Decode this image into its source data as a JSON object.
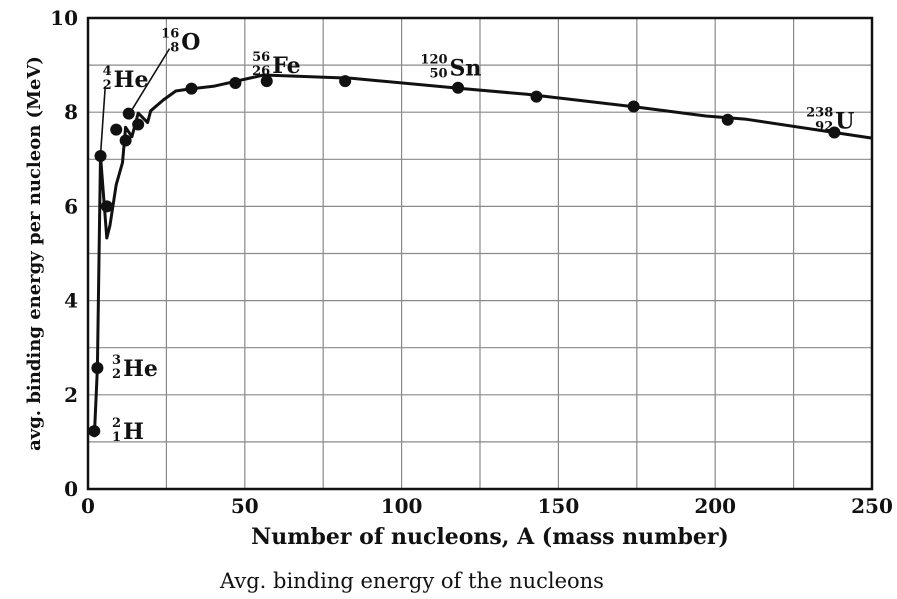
{
  "chart_data": {
    "type": "line",
    "title": "",
    "xlabel": "Number of nucleons, A (mass number)",
    "ylabel": "avg. binding energy per nucleon (MeV)",
    "xlim": [
      0,
      250
    ],
    "ylim": [
      0,
      10
    ],
    "x_ticks": [
      "0",
      "50",
      "100",
      "150",
      "200",
      "250"
    ],
    "y_ticks": [
      "0",
      "2",
      "4",
      "6",
      "8",
      "10"
    ],
    "grid": true,
    "series": [
      {
        "points": [
          {
            "x": 2,
            "y": 1.1
          },
          {
            "x": 3,
            "y": 2.57
          },
          {
            "x": 4,
            "y": 7.07
          },
          {
            "x": 6,
            "y": 5.33
          },
          {
            "x": 7,
            "y": 5.6
          },
          {
            "x": 9,
            "y": 6.46
          },
          {
            "x": 11,
            "y": 6.93
          },
          {
            "x": 12,
            "y": 7.68
          },
          {
            "x": 14,
            "y": 7.48
          },
          {
            "x": 16,
            "y": 7.98
          },
          {
            "x": 19,
            "y": 7.78
          },
          {
            "x": 20,
            "y": 8.03
          },
          {
            "x": 24,
            "y": 8.26
          },
          {
            "x": 28,
            "y": 8.45
          },
          {
            "x": 32,
            "y": 8.49
          },
          {
            "x": 40,
            "y": 8.55
          },
          {
            "x": 56,
            "y": 8.79
          },
          {
            "x": 84,
            "y": 8.72
          },
          {
            "x": 120,
            "y": 8.5
          },
          {
            "x": 140,
            "y": 8.38
          },
          {
            "x": 176,
            "y": 8.1
          },
          {
            "x": 197,
            "y": 7.92
          },
          {
            "x": 210,
            "y": 7.85
          },
          {
            "x": 238,
            "y": 7.57
          },
          {
            "x": 250,
            "y": 7.45
          }
        ],
        "markers": [
          {
            "x": 2,
            "y": 1.23
          },
          {
            "x": 3,
            "y": 2.57
          },
          {
            "x": 4,
            "y": 7.07
          },
          {
            "x": 6,
            "y": 6.0
          },
          {
            "x": 9,
            "y": 7.63
          },
          {
            "x": 12,
            "y": 7.4
          },
          {
            "x": 13,
            "y": 7.97
          },
          {
            "x": 16,
            "y": 7.74
          },
          {
            "x": 33,
            "y": 8.5
          },
          {
            "x": 47,
            "y": 8.62
          },
          {
            "x": 57,
            "y": 8.66
          },
          {
            "x": 82,
            "y": 8.66
          },
          {
            "x": 118,
            "y": 8.52
          },
          {
            "x": 143,
            "y": 8.33
          },
          {
            "x": 174,
            "y": 8.12
          },
          {
            "x": 204,
            "y": 7.84
          },
          {
            "x": 238,
            "y": 7.57
          }
        ]
      }
    ],
    "annotations": [
      {
        "symbol": "H",
        "mass": "2",
        "atomic": "1",
        "x": 8,
        "y": 1.23
      },
      {
        "symbol": "He",
        "mass": "3",
        "atomic": "2",
        "x": 8,
        "y": 2.57
      },
      {
        "symbol": "He",
        "mass": "4",
        "atomic": "2",
        "x": 5,
        "y": 8.7
      },
      {
        "symbol": "O",
        "mass": "16",
        "atomic": "8",
        "x": 24,
        "y": 9.5
      },
      {
        "symbol": "Fe",
        "mass": "56",
        "atomic": "26",
        "x": 53,
        "y": 9.0
      },
      {
        "symbol": "Sn",
        "mass": "120",
        "atomic": "50",
        "x": 107,
        "y": 8.95
      },
      {
        "symbol": "U",
        "mass": "238",
        "atomic": "92",
        "x": 230,
        "y": 7.82
      }
    ]
  },
  "caption": "Avg. binding energy of the nucleons"
}
